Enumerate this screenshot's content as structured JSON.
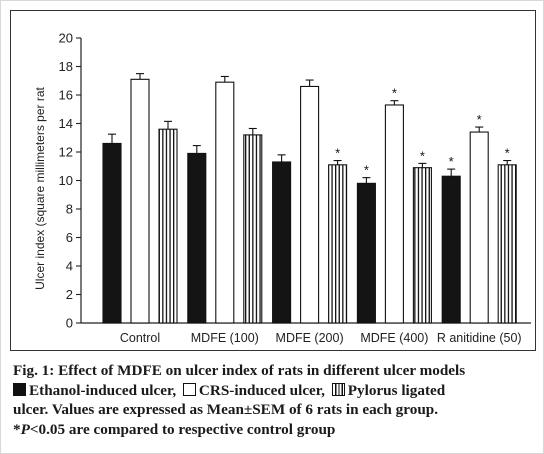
{
  "chart_data": {
    "type": "bar",
    "ylabel": "Ulcer index (square millimeters per rat",
    "xlabel": "",
    "ylim": [
      0,
      20
    ],
    "yticks": [
      0,
      2,
      4,
      6,
      8,
      10,
      12,
      14,
      16,
      18,
      20
    ],
    "grid": false,
    "categories": [
      "Control",
      "MDFE (100)",
      "MDFE (200)",
      "MDFE (400)",
      "R anitidine (50)"
    ],
    "series": [
      {
        "name": "Ethanol-induced ulcer",
        "fill": "solid",
        "values": [
          12.6,
          11.9,
          11.3,
          9.8,
          10.3
        ],
        "errors": [
          0.65,
          0.55,
          0.5,
          0.4,
          0.5
        ],
        "significant": [
          false,
          false,
          false,
          true,
          true
        ]
      },
      {
        "name": "CRS-induced ulcer",
        "fill": "open",
        "values": [
          17.1,
          16.9,
          16.6,
          15.3,
          13.4
        ],
        "errors": [
          0.4,
          0.4,
          0.45,
          0.3,
          0.35
        ],
        "significant": [
          false,
          false,
          false,
          true,
          true
        ]
      },
      {
        "name": "Pylorus ligated ulcer",
        "fill": "striped",
        "values": [
          13.6,
          13.2,
          11.1,
          10.9,
          11.1
        ],
        "errors": [
          0.55,
          0.45,
          0.3,
          0.3,
          0.3
        ],
        "significant": [
          false,
          false,
          true,
          true,
          true
        ]
      }
    ],
    "significance_marker": "*"
  },
  "caption": {
    "fig_label": "Fig. 1: Effect of MDFE on ulcer index of rats in different ulcer models",
    "legend": {
      "ethanol": "Ethanol-induced ulcer,",
      "crs": "CRS-induced ulcer,",
      "pylorus_part1": "Pylorus ligated",
      "pylorus_part2": "ulcer. Values are expressed as Mean±SEM of 6 rats in each group."
    },
    "footnote_symbol": "*",
    "footnote_p": "P",
    "footnote_rest": "<0.05 are compared to respective control group"
  }
}
